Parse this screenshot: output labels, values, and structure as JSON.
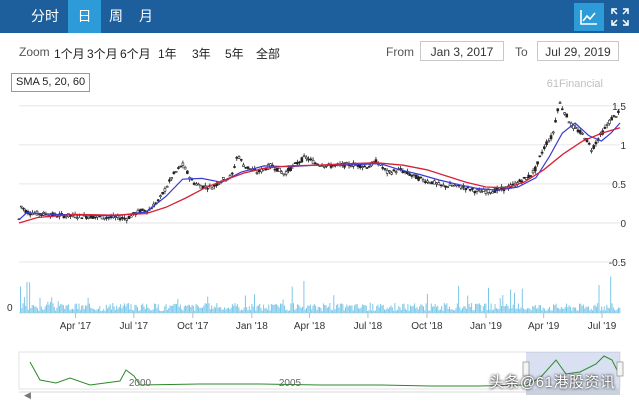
{
  "header": {
    "tabs": [
      {
        "label": "分时",
        "active": false
      },
      {
        "label": "日",
        "active": true
      },
      {
        "label": "周",
        "active": false
      },
      {
        "label": "月",
        "active": false
      }
    ],
    "tools": [
      {
        "icon": "line-chart-icon",
        "active": true
      },
      {
        "icon": "fullscreen-icon",
        "active": false
      }
    ]
  },
  "zoom": {
    "label": "Zoom",
    "buttons": [
      "1个月",
      "3个月",
      "6个月",
      "1年",
      "3年",
      "5年",
      "全部"
    ]
  },
  "range": {
    "from_label": "From",
    "from_value": "Jan 3, 2017",
    "to_label": "To",
    "to_value": "Jul 29, 2019"
  },
  "indicator": {
    "label": "SMA 5, 20, 60"
  },
  "credit": "61Financial",
  "watermark": "头条@61港股资讯",
  "colors": {
    "header": "#1d5f9c",
    "active_tab": "#2c9bd8",
    "sma5": "#222222",
    "sma20": "#3a3ad6",
    "sma60": "#d8213a",
    "volume": "#7cc7e8",
    "navigator": "#2a8a2a"
  },
  "chart_data": {
    "type": "line",
    "x_range": [
      "2017-01-03",
      "2019-07-29"
    ],
    "y_ticks": [
      -0.5,
      0,
      0.5,
      1,
      1.5
    ],
    "ylim": [
      -0.5,
      1.6
    ],
    "x_tick_labels": [
      "Apr '17",
      "Jul '17",
      "Oct '17",
      "Jan '18",
      "Apr '18",
      "Jul '18",
      "Oct '18",
      "Jan '19",
      "Apr '19",
      "Jul '19"
    ],
    "x_tick_dates": [
      "2017-04-01",
      "2017-07-01",
      "2017-10-01",
      "2018-01-01",
      "2018-04-01",
      "2018-07-01",
      "2018-10-01",
      "2019-01-01",
      "2019-04-01",
      "2019-07-01"
    ],
    "volume_tick": 0,
    "navigator_labels": [
      "2000",
      "2005"
    ],
    "series": [
      {
        "name": "SMA 5",
        "x": [
          "2017-01-03",
          "2017-01-06",
          "2017-01-15",
          "2017-02-01",
          "2017-03-01",
          "2017-04-01",
          "2017-05-01",
          "2017-06-01",
          "2017-06-20",
          "2017-07-10",
          "2017-07-25",
          "2017-08-10",
          "2017-08-20",
          "2017-09-01",
          "2017-09-15",
          "2017-10-01",
          "2017-10-15",
          "2017-11-01",
          "2017-11-15",
          "2017-12-01",
          "2017-12-10",
          "2017-12-20",
          "2018-01-10",
          "2018-02-01",
          "2018-02-20",
          "2018-03-15",
          "2018-03-25",
          "2018-04-10",
          "2018-05-01",
          "2018-05-20",
          "2018-06-10",
          "2018-07-01",
          "2018-07-15",
          "2018-08-01",
          "2018-08-20",
          "2018-09-10",
          "2018-09-25",
          "2018-10-10",
          "2018-10-25",
          "2018-11-10",
          "2018-12-01",
          "2018-12-20",
          "2019-01-10",
          "2019-01-25",
          "2019-02-10",
          "2019-02-25",
          "2019-03-10",
          "2019-03-20",
          "2019-03-28",
          "2019-04-05",
          "2019-04-15",
          "2019-04-25",
          "2019-05-05",
          "2019-05-15",
          "2019-05-25",
          "2019-06-05",
          "2019-06-15",
          "2019-06-25",
          "2019-07-05",
          "2019-07-15",
          "2019-07-29"
        ],
        "y": [
          0.05,
          0.22,
          0.14,
          0.12,
          0.1,
          0.09,
          0.08,
          0.07,
          0.06,
          0.15,
          0.17,
          0.3,
          0.45,
          0.62,
          0.75,
          0.52,
          0.47,
          0.46,
          0.55,
          0.6,
          0.88,
          0.73,
          0.65,
          0.74,
          0.63,
          0.78,
          0.84,
          0.77,
          0.73,
          0.74,
          0.75,
          0.72,
          0.79,
          0.64,
          0.68,
          0.6,
          0.55,
          0.52,
          0.47,
          0.48,
          0.45,
          0.4,
          0.41,
          0.43,
          0.47,
          0.54,
          0.6,
          0.7,
          0.88,
          1.02,
          1.12,
          1.55,
          1.4,
          1.24,
          1.18,
          1.1,
          0.94,
          1.08,
          1.2,
          1.33,
          1.42
        ]
      },
      {
        "name": "SMA 20",
        "x": [
          "2017-01-03",
          "2017-01-15",
          "2017-03-01",
          "2017-06-01",
          "2017-07-20",
          "2017-08-20",
          "2017-09-15",
          "2017-10-15",
          "2017-11-15",
          "2017-12-15",
          "2018-01-20",
          "2018-03-01",
          "2018-04-10",
          "2018-05-20",
          "2018-06-20",
          "2018-07-20",
          "2018-08-20",
          "2018-09-20",
          "2018-10-20",
          "2018-11-20",
          "2018-12-20",
          "2019-01-20",
          "2019-02-20",
          "2019-03-20",
          "2019-04-10",
          "2019-04-30",
          "2019-05-20",
          "2019-06-10",
          "2019-06-30",
          "2019-07-15",
          "2019-07-29"
        ],
        "y": [
          0.04,
          0.13,
          0.11,
          0.09,
          0.14,
          0.34,
          0.56,
          0.57,
          0.52,
          0.65,
          0.73,
          0.72,
          0.74,
          0.74,
          0.75,
          0.76,
          0.68,
          0.62,
          0.55,
          0.49,
          0.44,
          0.42,
          0.46,
          0.58,
          0.85,
          1.15,
          1.28,
          1.12,
          1.05,
          1.15,
          1.28
        ]
      },
      {
        "name": "SMA 60",
        "x": [
          "2017-01-03",
          "2017-02-01",
          "2017-04-01",
          "2017-06-01",
          "2017-07-20",
          "2017-08-20",
          "2017-09-20",
          "2017-10-20",
          "2017-11-20",
          "2017-12-20",
          "2018-01-20",
          "2018-03-01",
          "2018-04-15",
          "2018-06-01",
          "2018-07-15",
          "2018-08-25",
          "2018-10-01",
          "2018-11-01",
          "2018-12-01",
          "2019-01-01",
          "2019-02-01",
          "2019-03-01",
          "2019-04-01",
          "2019-05-01",
          "2019-06-01",
          "2019-07-01",
          "2019-07-29"
        ],
        "y": [
          0.0,
          0.07,
          0.11,
          0.1,
          0.12,
          0.2,
          0.32,
          0.45,
          0.55,
          0.64,
          0.7,
          0.73,
          0.74,
          0.76,
          0.77,
          0.74,
          0.68,
          0.6,
          0.52,
          0.46,
          0.45,
          0.52,
          0.68,
          0.88,
          1.05,
          1.15,
          1.22
        ]
      }
    ]
  }
}
